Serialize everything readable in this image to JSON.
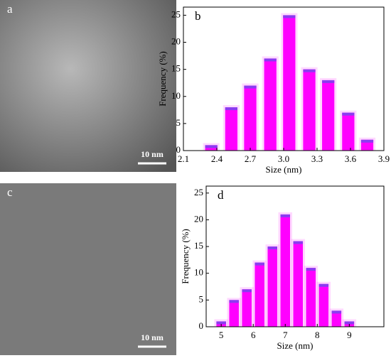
{
  "images": [
    {
      "label": "a",
      "scale_bar": "10 nm"
    },
    {
      "label": "c",
      "scale_bar": "10 nm"
    }
  ],
  "chart_data": [
    {
      "type": "bar",
      "label": "b",
      "x_label": "Size (nm)",
      "y_label": "Frequency (%)",
      "color": "#ff00ff",
      "x": [
        2.35,
        2.53,
        2.7,
        2.88,
        3.05,
        3.23,
        3.4,
        3.58,
        3.75
      ],
      "values": [
        1,
        8,
        12,
        17,
        25,
        15,
        13,
        7,
        2
      ],
      "xlim": [
        2.1,
        3.9
      ],
      "xticks": [
        2.1,
        2.4,
        2.7,
        {
          "value": 3,
          "label": "3.0"
        },
        3.3,
        3.6,
        3.9
      ],
      "ylim": [
        0,
        26.5
      ],
      "yticks": [
        0,
        5,
        10,
        15,
        20,
        25
      ]
    },
    {
      "type": "bar",
      "label": "d",
      "x_label": "Size (nm)",
      "y_label": "Frequency (%)",
      "color": "#ff00ff",
      "x": [
        5,
        5.4,
        5.8,
        6.2,
        6.6,
        7,
        7.4,
        7.8,
        8.2,
        8.6,
        9
      ],
      "values": [
        1,
        5,
        7,
        12,
        15,
        21,
        16,
        11,
        8,
        3,
        1
      ],
      "xlim": [
        4.53,
        10.08
      ],
      "xticks": [
        5,
        6,
        7,
        8,
        9
      ],
      "ylim": [
        0,
        26.3
      ],
      "yticks": [
        0,
        5,
        10,
        15,
        20,
        25
      ]
    }
  ]
}
